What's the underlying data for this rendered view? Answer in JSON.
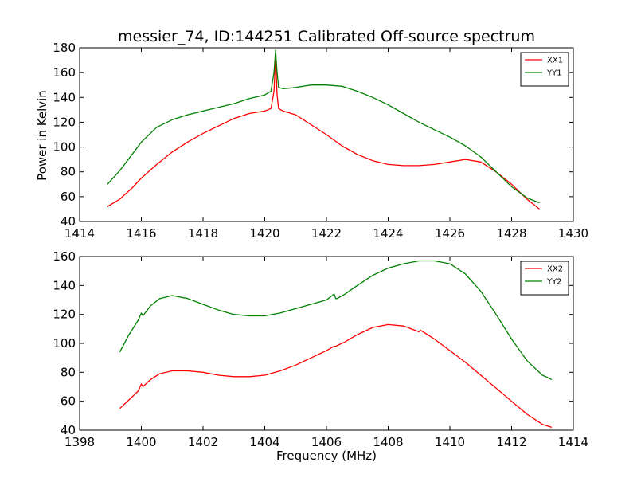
{
  "chart_data": [
    {
      "type": "line",
      "title": "messier_74, ID:144251 Calibrated Off-source spectrum",
      "xlabel": "",
      "ylabel": "Power in Kelvin",
      "xlim": [
        1414,
        1430
      ],
      "ylim": [
        40,
        180
      ],
      "xticks": [
        "1414",
        "1416",
        "1418",
        "1420",
        "1422",
        "1424",
        "1426",
        "1428",
        "1430"
      ],
      "yticks": [
        "40",
        "60",
        "80",
        "100",
        "120",
        "140",
        "160",
        "180"
      ],
      "legend_position": "top-right",
      "series": [
        {
          "name": "XX1",
          "color": "#ff0000",
          "x": [
            1414.9,
            1415.3,
            1415.7,
            1416.0,
            1416.5,
            1417.0,
            1417.5,
            1418.0,
            1418.5,
            1419.0,
            1419.5,
            1420.0,
            1420.2,
            1420.3,
            1420.35,
            1420.4,
            1420.45,
            1420.6,
            1421.0,
            1421.5,
            1422.0,
            1422.5,
            1423.0,
            1423.5,
            1424.0,
            1424.5,
            1425.0,
            1425.5,
            1426.0,
            1426.5,
            1427.0,
            1427.5,
            1428.0,
            1428.5,
            1428.9
          ],
          "y": [
            52,
            58,
            67,
            75,
            86,
            96,
            104,
            111,
            117,
            123,
            127,
            129,
            131,
            145,
            172,
            142,
            131,
            129,
            126,
            118,
            110,
            101,
            94,
            89,
            86,
            85,
            85,
            86,
            88,
            90,
            88,
            80,
            70,
            58,
            50
          ]
        },
        {
          "name": "YY1",
          "color": "#008000",
          "x": [
            1414.9,
            1415.3,
            1415.7,
            1416.0,
            1416.5,
            1417.0,
            1417.5,
            1418.0,
            1418.5,
            1419.0,
            1419.5,
            1420.0,
            1420.2,
            1420.3,
            1420.35,
            1420.4,
            1420.45,
            1420.6,
            1421.0,
            1421.5,
            1422.0,
            1422.5,
            1423.0,
            1423.5,
            1424.0,
            1424.5,
            1425.0,
            1425.5,
            1426.0,
            1426.5,
            1427.0,
            1427.5,
            1428.0,
            1428.5,
            1428.9
          ],
          "y": [
            70,
            81,
            94,
            104,
            116,
            122,
            126,
            129,
            132,
            135,
            139,
            142,
            145,
            160,
            178,
            160,
            148,
            147,
            148,
            150,
            150,
            149,
            145,
            140,
            134,
            127,
            120,
            114,
            108,
            101,
            92,
            80,
            68,
            59,
            55
          ]
        }
      ]
    },
    {
      "type": "line",
      "title": "",
      "xlabel": "Frequency (MHz)",
      "ylabel": "",
      "xlim": [
        1398,
        1414
      ],
      "ylim": [
        40,
        160
      ],
      "xticks": [
        "1398",
        "1400",
        "1402",
        "1404",
        "1406",
        "1408",
        "1410",
        "1412",
        "1414"
      ],
      "yticks": [
        "40",
        "60",
        "80",
        "100",
        "120",
        "140",
        "160"
      ],
      "legend_position": "top-right",
      "series": [
        {
          "name": "XX2",
          "color": "#ff0000",
          "x": [
            1399.3,
            1399.6,
            1399.9,
            1400.0,
            1400.05,
            1400.3,
            1400.6,
            1401.0,
            1401.5,
            1402.0,
            1402.5,
            1403.0,
            1403.5,
            1404.0,
            1404.5,
            1405.0,
            1405.5,
            1406.0,
            1406.25,
            1406.3,
            1406.6,
            1407.0,
            1407.5,
            1408.0,
            1408.5,
            1409.0,
            1409.05,
            1409.5,
            1410.0,
            1410.5,
            1411.0,
            1411.5,
            1412.0,
            1412.5,
            1413.0,
            1413.3
          ],
          "y": [
            55,
            61,
            67,
            72,
            70,
            75,
            79,
            81,
            81,
            80,
            78,
            77,
            77,
            78,
            81,
            85,
            90,
            95,
            98,
            98,
            101,
            106,
            111,
            113,
            112,
            108,
            109,
            103,
            95,
            87,
            78,
            69,
            60,
            51,
            44,
            42
          ]
        },
        {
          "name": "YY2",
          "color": "#008000",
          "x": [
            1399.3,
            1399.6,
            1399.9,
            1400.0,
            1400.05,
            1400.3,
            1400.6,
            1401.0,
            1401.5,
            1402.0,
            1402.5,
            1403.0,
            1403.5,
            1404.0,
            1404.5,
            1405.0,
            1405.5,
            1406.0,
            1406.25,
            1406.3,
            1406.35,
            1406.6,
            1407.0,
            1407.5,
            1408.0,
            1408.5,
            1409.0,
            1409.5,
            1410.0,
            1410.5,
            1411.0,
            1411.5,
            1412.0,
            1412.5,
            1413.0,
            1413.3
          ],
          "y": [
            94,
            106,
            116,
            121,
            119,
            126,
            131,
            133,
            131,
            127,
            123,
            120,
            119,
            119,
            121,
            124,
            127,
            130,
            134,
            131,
            131,
            134,
            140,
            147,
            152,
            155,
            157,
            157,
            155,
            148,
            136,
            120,
            103,
            88,
            78,
            75
          ]
        }
      ]
    }
  ]
}
